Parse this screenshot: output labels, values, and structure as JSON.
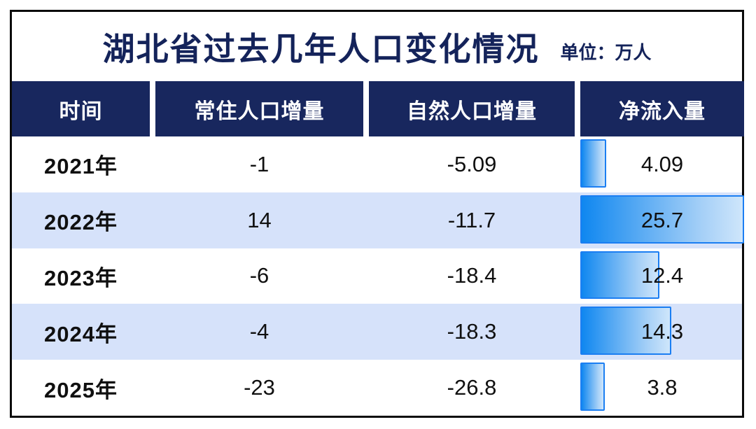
{
  "header": {
    "title": "湖北省过去几年人口变化情况",
    "unit_label": "单位：万人"
  },
  "table": {
    "columns": [
      "时间",
      "常住人口增量",
      "自然人口增量",
      "净流入量"
    ],
    "rows": [
      {
        "year": "2021年",
        "resident_increment": "-1",
        "natural_increment": "-5.09",
        "net_inflow": "4.09"
      },
      {
        "year": "2022年",
        "resident_increment": "14",
        "natural_increment": "-11.7",
        "net_inflow": "25.7"
      },
      {
        "year": "2023年",
        "resident_increment": "-6",
        "natural_increment": "-18.4",
        "net_inflow": "12.4"
      },
      {
        "year": "2024年",
        "resident_increment": "-4",
        "natural_increment": "-18.3",
        "net_inflow": "14.3"
      },
      {
        "year": "2025年",
        "resident_increment": "-23",
        "natural_increment": "-26.8",
        "net_inflow": "3.8"
      }
    ]
  },
  "colors": {
    "header_navy": "#18275e",
    "title_navy": "#14235a",
    "row_alt_blue": "#d6e2fa",
    "bar_border_blue": "#1b7ef2",
    "bar_gradient_start": "#0f87f0",
    "bar_gradient_end": "#cfe6fb",
    "frame_black": "#0b0b0b"
  },
  "chart_data": {
    "type": "table",
    "title": "湖北省过去几年人口变化情况",
    "unit": "单位：万人",
    "columns": [
      "时间",
      "常住人口增量",
      "自然人口增量",
      "净流入量"
    ],
    "categories": [
      "2021年",
      "2022年",
      "2023年",
      "2024年",
      "2025年"
    ],
    "series": [
      {
        "name": "常住人口增量",
        "values": [
          -1,
          14,
          -6,
          -4,
          -23
        ]
      },
      {
        "name": "自然人口增量",
        "values": [
          -5.09,
          -11.7,
          -18.4,
          -18.3,
          -26.8
        ]
      },
      {
        "name": "净流入量",
        "values": [
          4.09,
          25.7,
          12.4,
          14.3,
          3.8
        ]
      }
    ],
    "bar_column": "净流入量",
    "bar_scale_max": 25.7,
    "layout": {
      "alternating_row_fill": true,
      "bars_embedded_in_last_column": true
    }
  }
}
